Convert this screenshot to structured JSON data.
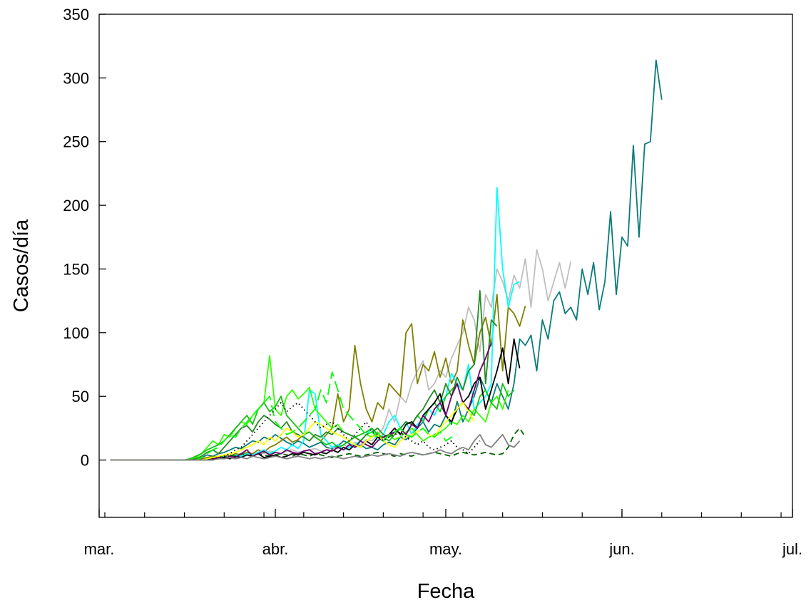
{
  "chart_data": {
    "type": "line",
    "title": "",
    "xlabel": "Fecha",
    "ylabel": "Casos/día",
    "xlim": [
      "2020-03-01",
      "2020-07-01"
    ],
    "ylim": [
      -45,
      350
    ],
    "x_tick_labels": [
      {
        "date": "2020-03-01",
        "label": "mar."
      },
      {
        "date": "2020-04-01",
        "label": "abr."
      },
      {
        "date": "2020-05-01",
        "label": "may."
      },
      {
        "date": "2020-06-01",
        "label": "jun."
      },
      {
        "date": "2020-07-01",
        "label": "jul."
      }
    ],
    "y_ticks": [
      0,
      50,
      100,
      150,
      200,
      250,
      300,
      350
    ],
    "grid": false,
    "legend": "none",
    "start_date": "2020-03-03",
    "series": [
      {
        "color": "#0b7b7b",
        "dash": "solid",
        "values": [
          0,
          0,
          0,
          0,
          0,
          0,
          0,
          0,
          0,
          0,
          0,
          0,
          0,
          0,
          0,
          1,
          2,
          4,
          3,
          5,
          6,
          8,
          10,
          9,
          12,
          15,
          14,
          18,
          16,
          20,
          17,
          14,
          12,
          15,
          13,
          10,
          12,
          14,
          10,
          9,
          11,
          15,
          13,
          10,
          12,
          9,
          10,
          8,
          12,
          14,
          12,
          18,
          16,
          20,
          25,
          30,
          22,
          28,
          26,
          35,
          28,
          46,
          30,
          40,
          50,
          65,
          55,
          45,
          60,
          50,
          40,
          60,
          95,
          90,
          98,
          70,
          110,
          95,
          125,
          132,
          115,
          120,
          110,
          150,
          130,
          155,
          118,
          140,
          195,
          130,
          175,
          168,
          247,
          175,
          248,
          250,
          314,
          283
        ]
      },
      {
        "color": "#bfbfbf",
        "dash": "solid",
        "values": [
          0,
          0,
          0,
          0,
          0,
          0,
          0,
          0,
          0,
          0,
          0,
          0,
          0,
          0,
          0,
          1,
          1,
          2,
          2,
          3,
          2,
          3,
          4,
          3,
          5,
          4,
          6,
          5,
          7,
          6,
          5,
          7,
          8,
          6,
          7,
          8,
          9,
          7,
          8,
          10,
          9,
          12,
          10,
          14,
          12,
          16,
          15,
          20,
          25,
          40,
          30,
          50,
          45,
          60,
          70,
          78,
          55,
          60,
          70,
          65,
          80,
          90,
          100,
          120,
          110,
          85,
          130,
          120,
          150,
          140,
          125,
          145,
          135,
          158,
          120,
          165,
          150,
          125,
          140,
          155,
          135,
          156
        ]
      },
      {
        "color": "#808000",
        "dash": "solid",
        "values": [
          0,
          0,
          0,
          0,
          0,
          0,
          0,
          0,
          0,
          0,
          0,
          0,
          0,
          0,
          0,
          0,
          1,
          2,
          3,
          2,
          4,
          3,
          5,
          4,
          6,
          5,
          8,
          6,
          10,
          12,
          15,
          18,
          14,
          16,
          20,
          22,
          18,
          15,
          20,
          25,
          52,
          30,
          40,
          90,
          60,
          40,
          30,
          45,
          40,
          60,
          55,
          50,
          100,
          107,
          60,
          75,
          70,
          85,
          65,
          80,
          60,
          70,
          110,
          90,
          75,
          100,
          112,
          90,
          130,
          70,
          120,
          115,
          105,
          121
        ]
      },
      {
        "color": "#00ffff",
        "dash": "solid",
        "values": [
          0,
          0,
          0,
          0,
          0,
          0,
          0,
          0,
          0,
          0,
          0,
          0,
          0,
          0,
          0,
          0,
          0,
          1,
          2,
          1,
          3,
          2,
          4,
          3,
          5,
          4,
          6,
          8,
          5,
          7,
          10,
          8,
          12,
          9,
          15,
          55,
          52,
          20,
          15,
          10,
          12,
          8,
          10,
          12,
          15,
          20,
          25,
          15,
          20,
          30,
          35,
          25,
          30,
          20,
          28,
          32,
          40,
          35,
          45,
          50,
          68,
          60,
          55,
          75,
          40,
          45,
          50,
          60,
          214,
          150,
          120,
          138,
          140
        ]
      },
      {
        "color": "#33ff00",
        "dash": "solid",
        "values": [
          0,
          0,
          0,
          0,
          0,
          0,
          0,
          0,
          0,
          0,
          0,
          0,
          0,
          0,
          0,
          2,
          5,
          10,
          15,
          12,
          20,
          18,
          25,
          30,
          28,
          35,
          40,
          45,
          82,
          40,
          35,
          50,
          55,
          48,
          52,
          57,
          40,
          35,
          30,
          25,
          28,
          22,
          20,
          18,
          15,
          20,
          18,
          22,
          15,
          20,
          16,
          18,
          22,
          25,
          20,
          15,
          18,
          20,
          22,
          25,
          30,
          28,
          35,
          30,
          40,
          35,
          30,
          45,
          50,
          40,
          55
        ]
      },
      {
        "color": "#15c215",
        "dash": "solid",
        "values": [
          0,
          0,
          0,
          0,
          0,
          0,
          0,
          0,
          0,
          0,
          0,
          0,
          0,
          0,
          1,
          3,
          5,
          8,
          10,
          12,
          15,
          20,
          25,
          30,
          35,
          28,
          40,
          45,
          38,
          42,
          50,
          35,
          30,
          25,
          20,
          22,
          18,
          15,
          12,
          14,
          10,
          12,
          15,
          18,
          20,
          22,
          25,
          20,
          18,
          15,
          20,
          25,
          30,
          28,
          35,
          30,
          40,
          45,
          38,
          50,
          55,
          60,
          45,
          40,
          35,
          50,
          55,
          45,
          40,
          60,
          50,
          55
        ]
      },
      {
        "color": "#228b22",
        "dash": "solid",
        "values": [
          0,
          0,
          0,
          0,
          0,
          0,
          0,
          0,
          0,
          0,
          0,
          0,
          0,
          0,
          0,
          1,
          3,
          6,
          8,
          5,
          10,
          15,
          20,
          25,
          27,
          22,
          30,
          35,
          32,
          28,
          25,
          30,
          22,
          20,
          18,
          15,
          20,
          18,
          22,
          20,
          25,
          22,
          20,
          18,
          15,
          20,
          22,
          25,
          20,
          18,
          22,
          25,
          30,
          28,
          35,
          40,
          48,
          55,
          45,
          60,
          50,
          65,
          55,
          70,
          75,
          133,
          60,
          110,
          105
        ]
      },
      {
        "color": "#006400",
        "dash": "dash",
        "values": [
          0,
          0,
          0,
          0,
          0,
          0,
          0,
          0,
          0,
          0,
          0,
          0,
          0,
          0,
          0,
          0,
          0,
          1,
          2,
          3,
          2,
          4,
          3,
          5,
          4,
          3,
          5,
          4,
          3,
          4,
          5,
          4,
          3,
          5,
          4,
          3,
          5,
          4,
          3,
          2,
          3,
          4,
          5,
          4,
          3,
          4,
          5,
          6,
          5,
          4,
          3,
          5,
          4,
          3,
          5,
          4,
          5,
          6,
          5,
          4,
          3,
          5,
          6,
          5,
          4,
          5,
          6,
          5,
          4,
          5,
          10,
          20,
          25,
          18
        ]
      },
      {
        "color": "#000000",
        "dash": "solid",
        "values": [
          0,
          0,
          0,
          0,
          0,
          0,
          0,
          0,
          0,
          0,
          0,
          0,
          0,
          0,
          0,
          0,
          0,
          0,
          1,
          1,
          2,
          1,
          3,
          2,
          4,
          3,
          5,
          2,
          3,
          4,
          2,
          3,
          5,
          4,
          6,
          5,
          4,
          6,
          5,
          8,
          6,
          10,
          8,
          12,
          10,
          15,
          12,
          18,
          15,
          20,
          25,
          20,
          28,
          30,
          25,
          35,
          40,
          45,
          52,
          35,
          30,
          40,
          45,
          50,
          60,
          65,
          40,
          55,
          70,
          88,
          60,
          95,
          72
        ]
      },
      {
        "color": "#6b006b",
        "dash": "solid",
        "values": [
          0,
          0,
          0,
          0,
          0,
          0,
          0,
          0,
          0,
          0,
          0,
          0,
          0,
          0,
          0,
          0,
          0,
          0,
          1,
          2,
          1,
          3,
          2,
          5,
          8,
          3,
          5,
          7,
          4,
          6,
          5,
          8,
          6,
          5,
          7,
          8,
          5,
          6,
          8,
          7,
          10,
          8,
          12,
          10,
          15,
          12,
          10,
          15,
          18,
          20,
          22,
          25,
          20,
          28,
          25,
          35,
          30,
          40,
          45,
          35,
          50,
          60,
          45,
          40,
          55,
          70,
          80,
          92
        ]
      },
      {
        "color": "#ffff00",
        "dash": "solid",
        "values": [
          0,
          0,
          0,
          0,
          0,
          0,
          0,
          0,
          0,
          0,
          0,
          0,
          0,
          0,
          0,
          0,
          0,
          1,
          2,
          3,
          4,
          5,
          6,
          8,
          10,
          12,
          15,
          12,
          18,
          15,
          20,
          25,
          22,
          18,
          20,
          25,
          30,
          28,
          25,
          22,
          20,
          18,
          15,
          12,
          10,
          15,
          18,
          20,
          15,
          12,
          10,
          15,
          18,
          20,
          22,
          25,
          20,
          18,
          25,
          30,
          35,
          40,
          45,
          38,
          30
        ]
      },
      {
        "color": "#00ff00",
        "dash": "longdash",
        "values": [
          0,
          0,
          0,
          0,
          0,
          0,
          0,
          0,
          0,
          0,
          0,
          0,
          0,
          0,
          0,
          0,
          2,
          5,
          8,
          10,
          15,
          20,
          18,
          25,
          30,
          35,
          40,
          45,
          50,
          30,
          25,
          20,
          22,
          25,
          30,
          35,
          40,
          55,
          45,
          69,
          55,
          40,
          35,
          30,
          25,
          20,
          22,
          18,
          15,
          20,
          22,
          25,
          20,
          18,
          22,
          25,
          20,
          18,
          22,
          15,
          18,
          20
        ]
      },
      {
        "color": "#000000",
        "dash": "dot",
        "values": [
          0,
          0,
          0,
          0,
          0,
          0,
          0,
          0,
          0,
          0,
          0,
          0,
          0,
          0,
          0,
          0,
          0,
          0,
          1,
          2,
          3,
          5,
          8,
          10,
          15,
          20,
          25,
          30,
          35,
          40,
          45,
          38,
          42,
          45,
          40,
          35,
          30,
          25,
          28,
          30,
          25,
          20,
          15,
          20,
          25,
          30,
          22,
          20,
          15,
          18,
          20,
          22,
          18,
          15,
          12,
          15,
          10,
          8,
          10,
          12,
          15,
          10,
          8,
          5,
          10,
          15
        ]
      },
      {
        "color": "#808080",
        "dash": "solid",
        "values": [
          0,
          0,
          0,
          0,
          0,
          0,
          0,
          0,
          0,
          0,
          0,
          0,
          0,
          0,
          0,
          0,
          0,
          0,
          0,
          1,
          1,
          2,
          1,
          2,
          1,
          3,
          2,
          1,
          2,
          3,
          2,
          1,
          2,
          3,
          2,
          1,
          2,
          1,
          2,
          3,
          2,
          1,
          2,
          3,
          2,
          3,
          4,
          3,
          4,
          5,
          4,
          3,
          5,
          6,
          5,
          4,
          5,
          6,
          8,
          6,
          5,
          8,
          10,
          8,
          15,
          20,
          12,
          10,
          15,
          20,
          12,
          10,
          15
        ]
      }
    ]
  }
}
